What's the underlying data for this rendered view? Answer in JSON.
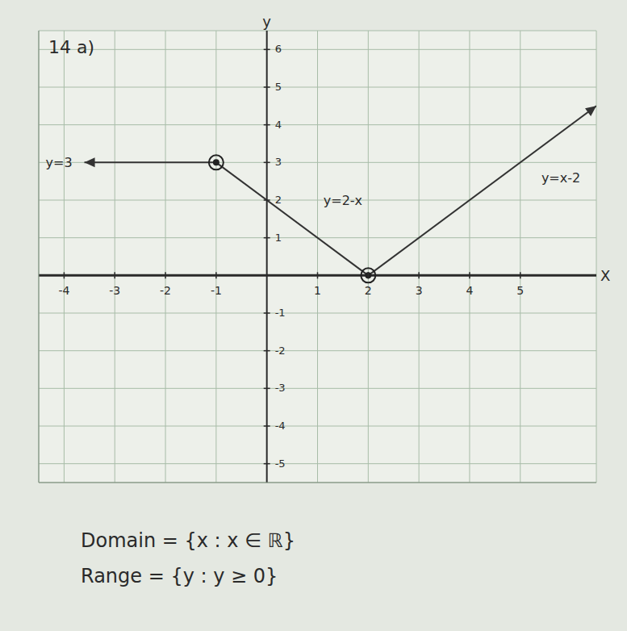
{
  "chart_data": {
    "type": "line",
    "title": "14 a)",
    "x_label": "X",
    "y_label": "y",
    "xlim": [
      -4.5,
      6.5
    ],
    "ylim": [
      -5.5,
      6.5
    ],
    "xticks": [
      -4,
      -3,
      -2,
      -1,
      1,
      2,
      3,
      4,
      5
    ],
    "yticks": [
      -5,
      -4,
      -3,
      -2,
      -1,
      1,
      2,
      3,
      4,
      5,
      6
    ],
    "grid": true,
    "series": [
      {
        "name": "y=3",
        "color": "#333333",
        "marker": "arrow",
        "x": [
          -3.6,
          -1
        ],
        "values": [
          3,
          3
        ]
      },
      {
        "name": "y=2-x",
        "color": "#333333",
        "x": [
          -1,
          2
        ],
        "values": [
          3,
          0
        ]
      },
      {
        "name": "y=x-2",
        "color": "#333333",
        "marker": "arrow",
        "x": [
          2,
          6.5
        ],
        "values": [
          0,
          4.5
        ]
      }
    ],
    "points": {
      "x": [
        -1,
        2
      ],
      "values": [
        3,
        0
      ],
      "marker": "circle",
      "color": "#222222"
    },
    "annotations": [
      "Domain = {x : x ∈ ℝ}",
      "Range = {y : y ≥ 0}"
    ]
  }
}
